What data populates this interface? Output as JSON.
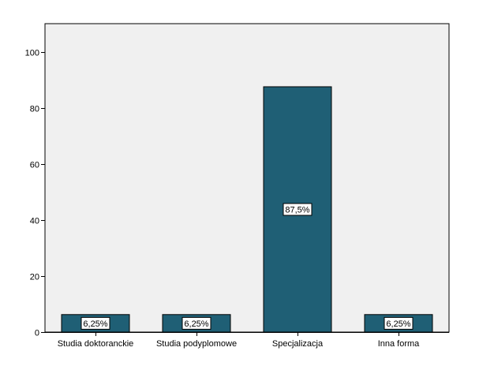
{
  "chart_data": {
    "type": "bar",
    "categories": [
      "Studia doktoranckie",
      "Studia podyplomowe",
      "Specjalizacja",
      "Inna forma"
    ],
    "values": [
      6.25,
      6.25,
      87.5,
      6.25
    ],
    "data_labels": [
      "6,25%",
      "6,25%",
      "87,5%",
      "6,25%"
    ],
    "title": "",
    "xlabel": "",
    "ylabel": "",
    "ylim": [
      0,
      110
    ],
    "yticks": [
      0,
      20,
      40,
      60,
      80,
      100
    ],
    "ytick_labels": [
      "0",
      "20",
      "40",
      "60",
      "80",
      "100"
    ],
    "grid": false,
    "legend": "none",
    "colors": {
      "bar": "#1f5f75",
      "bar_edge": "#000000",
      "plot_bg": "#f0f0f0",
      "page_bg": "#ffffff",
      "label_bg": "#ffffff"
    }
  }
}
